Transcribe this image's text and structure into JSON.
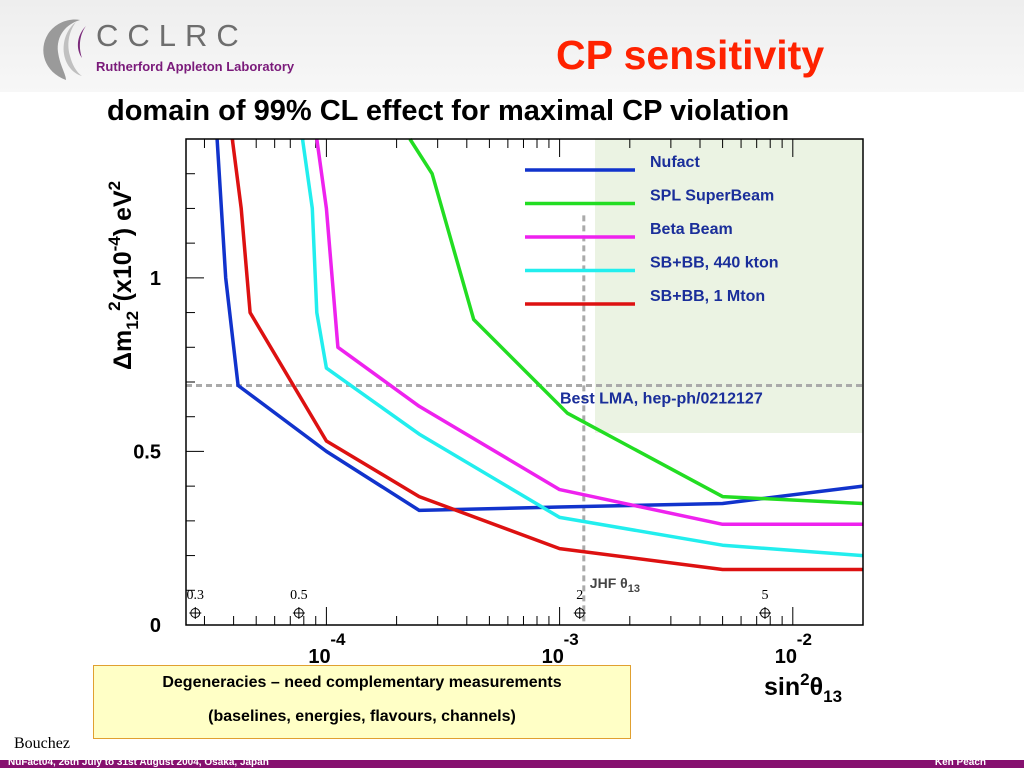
{
  "header": {
    "logo_name": "CCLRC",
    "logo_sub": "Rutherford Appleton Laboratory",
    "title": "CP sensitivity"
  },
  "subtitle": "domain of 99% CL effect for maximal CP violation",
  "chart_data": {
    "type": "line",
    "x_scale": "log",
    "xlim": [
      2.5e-05,
      0.02
    ],
    "ylim": [
      0,
      1.4
    ],
    "xticks": [
      0.0001,
      0.001,
      0.01
    ],
    "xtick_labels": [
      {
        "base": "10",
        "exp": "-4"
      },
      {
        "base": "10",
        "exp": "-3"
      },
      {
        "base": "10",
        "exp": "-2"
      }
    ],
    "yticks": [
      0,
      0.5,
      1
    ],
    "ytick_labels": [
      "0",
      "0.5",
      "1"
    ],
    "ylabel": {
      "delta": "Δ",
      "m": "m",
      "sub": "12",
      "sup": "2",
      "mid": "(x10",
      "exp": "-4",
      "tail": ") eV",
      "tail_sup": "2"
    },
    "xlabel": {
      "sin": "sin",
      "sup": "2",
      "theta": "θ",
      "sub": "13"
    },
    "theta_degrees": [
      {
        "label": "0.3",
        "x": 2.74e-05
      },
      {
        "label": "0.5",
        "x": 7.62e-05
      },
      {
        "label": "2",
        "x": 0.00122
      },
      {
        "label": "5",
        "x": 0.0076
      }
    ],
    "best_lma": {
      "y": 0.69,
      "label": "Best LMA,  hep-ph/0212127"
    },
    "jhf": {
      "x": 0.00127,
      "label": "JHF θ",
      "sub": "13"
    },
    "legend_position": "top-right",
    "series": [
      {
        "name": "Nufact",
        "color": "#1133cc",
        "x": [
          3.4e-05,
          3.7e-05,
          4.18e-05,
          0.0001,
          0.00025,
          0.001,
          0.005,
          0.02
        ],
        "y": [
          1.4,
          1.0,
          0.69,
          0.5,
          0.33,
          0.34,
          0.35,
          0.4
        ]
      },
      {
        "name": "SPL SuperBeam",
        "color": "#22dd22",
        "x": [
          0.000228,
          0.000284,
          0.000428,
          0.00108,
          0.005,
          0.02
        ],
        "y": [
          1.4,
          1.3,
          0.88,
          0.61,
          0.37,
          0.35
        ]
      },
      {
        "name": "Beta Beam",
        "color": "#ee22ee",
        "x": [
          9.1e-05,
          0.0001,
          0.000112,
          0.00025,
          0.001,
          0.005,
          0.02
        ],
        "y": [
          1.4,
          1.2,
          0.8,
          0.63,
          0.39,
          0.29,
          0.29
        ]
      },
      {
        "name": "SB+BB, 440 kton",
        "color": "#22eeee",
        "x": [
          7.9e-05,
          8.7e-05,
          9.1e-05,
          0.0001,
          0.00025,
          0.001,
          0.005,
          0.02
        ],
        "y": [
          1.4,
          1.2,
          0.9,
          0.74,
          0.55,
          0.31,
          0.23,
          0.2
        ]
      },
      {
        "name": "SB+BB, 1 Mton",
        "color": "#dd1111",
        "x": [
          3.95e-05,
          4.31e-05,
          4.71e-05,
          0.0001,
          0.00025,
          0.001,
          0.005,
          0.02
        ],
        "y": [
          1.4,
          1.2,
          0.9,
          0.53,
          0.37,
          0.22,
          0.16,
          0.16
        ]
      }
    ]
  },
  "note": {
    "line1": "Degeneracies – need complementary measurements",
    "line2": "(baselines, energies, flavours, channels)"
  },
  "credit": "Bouchez",
  "footer": {
    "left": "NuFact04, 26th July to 31st August 2004, Osaka, Japan",
    "right": "Ken Peach"
  },
  "colors": {
    "title": "#ff2200",
    "legend_panel": "#ebf3e3",
    "footer_band": "#86106f",
    "note_box": "#ffffc6"
  }
}
